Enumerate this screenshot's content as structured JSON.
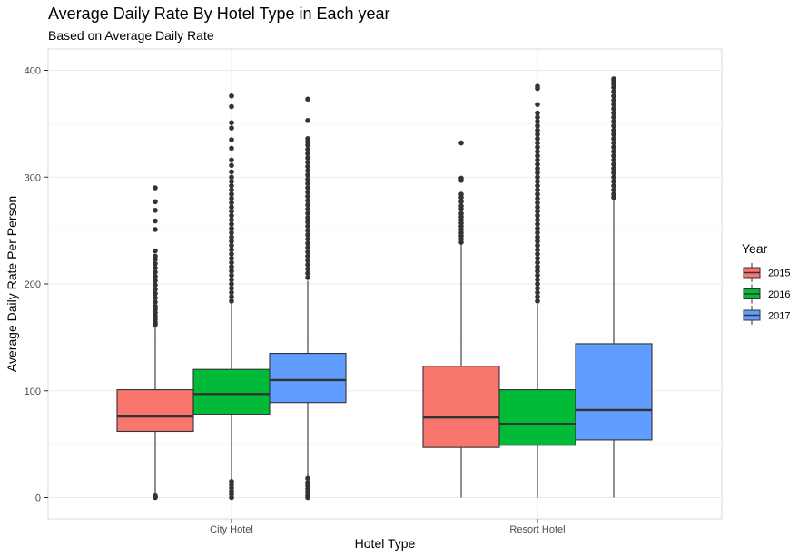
{
  "chart_data": {
    "type": "boxplot",
    "title": "Average Daily Rate By Hotel Type in Each year",
    "subtitle": "Based on Average Daily Rate",
    "xlabel": "Hotel Type",
    "ylabel": "Average Daily Rate Per Person",
    "ylim": [
      -20,
      410
    ],
    "yticks": [
      0,
      100,
      200,
      300,
      400
    ],
    "grid": true,
    "legend": {
      "title": "Year",
      "position": "right"
    },
    "categories": [
      "City Hotel",
      "Resort Hotel"
    ],
    "series": [
      {
        "name": "2015",
        "color": "#F8766D",
        "boxes": [
          {
            "min": 0,
            "q1": 62,
            "median": 76,
            "q3": 101,
            "max": 160,
            "outliers": [
              290,
              277,
              269,
              259,
              251,
              231,
              226,
              223,
              219,
              215,
              211,
              207,
              203,
              199,
              195,
              191,
              187,
              183,
              179,
              176,
              173,
              170,
              167,
              164,
              162,
              0,
              0.5,
              1,
              1.5
            ]
          },
          {
            "min": 0,
            "q1": 47,
            "median": 75,
            "q3": 123,
            "max": 237,
            "outliers": [
              332,
              299,
              297,
              284,
              281,
              277,
              273,
              270,
              266,
              263,
              260,
              257,
              254,
              251,
              248,
              245,
              242,
              239
            ]
          }
        ]
      },
      {
        "name": "2016",
        "color": "#00BA38",
        "boxes": [
          {
            "min": 17,
            "q1": 78,
            "median": 97,
            "q3": 120,
            "max": 182,
            "outliers": [
              376,
              366,
              351,
              346,
              335,
              327,
              316,
              311,
              305,
              300,
              296,
              292,
              288,
              284,
              280,
              276,
              272,
              268,
              264,
              260,
              256,
              252,
              248,
              244,
              240,
              236,
              232,
              228,
              224,
              220,
              216,
              212,
              208,
              204,
              200,
              196,
              192,
              188,
              184,
              15,
              12,
              9,
              6,
              3,
              0
            ]
          },
          {
            "min": 0,
            "q1": 49,
            "median": 69,
            "q3": 101,
            "max": 181,
            "outliers": [
              385,
              383,
              368,
              360,
              356,
              352,
              348,
              344,
              340,
              336,
              332,
              328,
              324,
              320,
              316,
              312,
              308,
              304,
              300,
              296,
              292,
              288,
              284,
              280,
              276,
              272,
              268,
              264,
              260,
              256,
              252,
              248,
              244,
              240,
              236,
              232,
              228,
              224,
              220,
              216,
              212,
              208,
              204,
              200,
              196,
              192,
              188,
              184
            ]
          }
        ]
      },
      {
        "name": "2017",
        "color": "#619CFF",
        "boxes": [
          {
            "min": 20,
            "q1": 89,
            "median": 110,
            "q3": 135,
            "max": 203,
            "outliers": [
              373,
              353,
              336,
              333,
              330,
              326,
              322,
              318,
              314,
              310,
              306,
              302,
              298,
              294,
              290,
              286,
              282,
              278,
              274,
              270,
              266,
              262,
              258,
              254,
              250,
              246,
              242,
              238,
              234,
              230,
              226,
              222,
              218,
              214,
              210,
              206,
              18,
              14,
              11,
              8,
              5,
              2,
              0
            ]
          },
          {
            "min": 0,
            "q1": 54,
            "median": 82,
            "q3": 144,
            "max": 278,
            "outliers": [
              392,
              390,
              387,
              384,
              380,
              376,
              372,
              368,
              364,
              360,
              356,
              352,
              348,
              344,
              340,
              336,
              332,
              328,
              324,
              320,
              316,
              312,
              308,
              304,
              300,
              296,
              292,
              288,
              284,
              281
            ]
          }
        ]
      }
    ]
  }
}
